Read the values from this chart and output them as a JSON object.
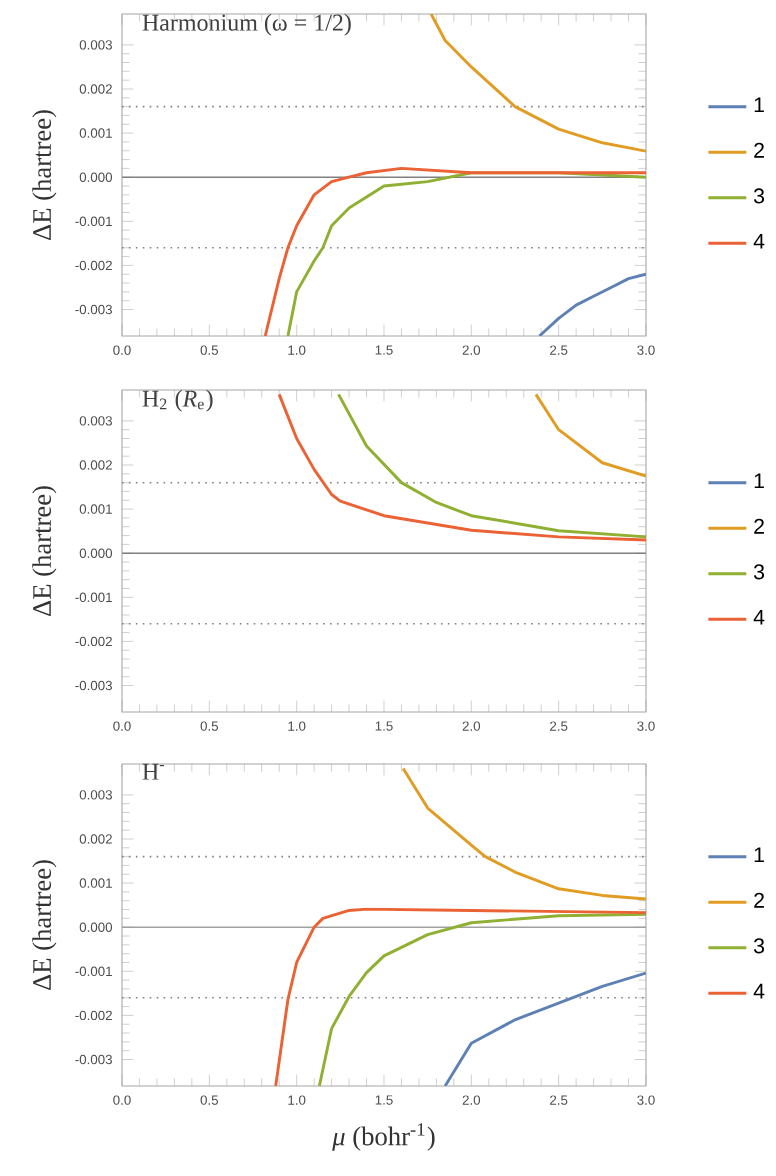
{
  "chart_data": [
    {
      "type": "line",
      "title": "Harmonium (ω = 1/2)",
      "ylabel": "ΔE (hartree)",
      "xlim": [
        0,
        3
      ],
      "ylim": [
        -0.0036,
        0.0037
      ],
      "xticks": [
        {
          "value": 0,
          "label": "0.0"
        },
        {
          "value": 0.5,
          "label": "0.5"
        },
        {
          "value": 1,
          "label": "1.0"
        },
        {
          "value": 1.5,
          "label": "1.5"
        },
        {
          "value": 2,
          "label": "2.0"
        },
        {
          "value": 2.5,
          "label": "2.5"
        },
        {
          "value": 3,
          "label": "3.0"
        }
      ],
      "yticks": [
        {
          "value": -0.003,
          "label": "-0.003"
        },
        {
          "value": -0.002,
          "label": "-0.002"
        },
        {
          "value": -0.001,
          "label": "-0.001"
        },
        {
          "value": 0,
          "label": "0.000"
        },
        {
          "value": 0.001,
          "label": "0.001"
        },
        {
          "value": 0.002,
          "label": "0.002"
        },
        {
          "value": 0.003,
          "label": "0.003"
        }
      ],
      "legend": "right",
      "ref_lines": [
        {
          "axis": "y",
          "value": 0,
          "color": "#808080"
        },
        {
          "axis": "y",
          "value": 0.0016,
          "color": "#808080",
          "line_style": "dotted"
        },
        {
          "axis": "y",
          "value": -0.0016,
          "color": "#808080",
          "line_style": "dotted"
        }
      ],
      "series": [
        {
          "name": "1",
          "color": "#5e81b5",
          "x": [
            2.39,
            2.5,
            2.6,
            2.7,
            2.8,
            2.9,
            3.0
          ],
          "values": [
            -0.0036,
            -0.0032,
            -0.0029,
            -0.0027,
            -0.0025,
            -0.0023,
            -0.0022
          ]
        },
        {
          "name": "2",
          "color": "#e19c24",
          "x": [
            1.77,
            1.85,
            1.9,
            2.0,
            2.25,
            2.5,
            2.75,
            3.0
          ],
          "values": [
            0.0037,
            0.0031,
            0.0029,
            0.0025,
            0.0016,
            0.00109,
            0.00078,
            0.00059
          ]
        },
        {
          "name": "3",
          "color": "#8fb032",
          "x": [
            0.95,
            1.0,
            1.1,
            1.15,
            1.2,
            1.3,
            1.5,
            1.75,
            2.0,
            2.5,
            3.0
          ],
          "values": [
            -0.0036,
            -0.0026,
            -0.0019,
            -0.0016,
            -0.0011,
            -0.0007,
            -0.0002,
            -0.0001,
            0.0001,
            0.0001,
            0.0
          ]
        },
        {
          "name": "4",
          "color": "#eb6235",
          "x": [
            0.82,
            0.9,
            0.95,
            1.0,
            1.1,
            1.2,
            1.3,
            1.4,
            1.6,
            2.0,
            2.5,
            3.0
          ],
          "values": [
            -0.0036,
            -0.0023,
            -0.0016,
            -0.0011,
            -0.0004,
            -0.0001,
            0.0,
            0.0001,
            0.0002,
            0.0001,
            0.0001,
            0.0001
          ]
        }
      ]
    },
    {
      "type": "line",
      "title": "H$_{2}$ (*R*$_{e}$)",
      "ylabel": "ΔE (hartree)",
      "xlim": [
        0,
        3
      ],
      "ylim": [
        -0.0036,
        0.0037
      ],
      "xticks": [
        {
          "value": 0,
          "label": "0.0"
        },
        {
          "value": 0.5,
          "label": "0.5"
        },
        {
          "value": 1,
          "label": "1.0"
        },
        {
          "value": 1.5,
          "label": "1.5"
        },
        {
          "value": 2,
          "label": "2.0"
        },
        {
          "value": 2.5,
          "label": "2.5"
        },
        {
          "value": 3,
          "label": "3.0"
        }
      ],
      "yticks": [
        {
          "value": -0.003,
          "label": "-0.003"
        },
        {
          "value": -0.002,
          "label": "-0.002"
        },
        {
          "value": -0.001,
          "label": "-0.001"
        },
        {
          "value": 0,
          "label": "0.000"
        },
        {
          "value": 0.001,
          "label": "0.001"
        },
        {
          "value": 0.002,
          "label": "0.002"
        },
        {
          "value": 0.003,
          "label": "0.003"
        }
      ],
      "legend": "right",
      "ref_lines": [
        {
          "axis": "y",
          "value": 0,
          "color": "#808080"
        },
        {
          "axis": "y",
          "value": 0.0016,
          "color": "#808080",
          "line_style": "dotted"
        },
        {
          "axis": "y",
          "value": -0.0016,
          "color": "#808080",
          "line_style": "dotted"
        }
      ],
      "series": [
        {
          "name": "1",
          "color": "#5e81b5"
        },
        {
          "name": "2",
          "color": "#e19c24",
          "x": [
            2.37,
            2.5,
            2.75,
            3.0
          ],
          "values": [
            0.0036,
            0.0028,
            0.00205,
            0.00175
          ]
        },
        {
          "name": "3",
          "color": "#8fb032",
          "x": [
            1.24,
            1.4,
            1.6,
            1.8,
            2.0,
            2.5,
            3.0
          ],
          "values": [
            0.0036,
            0.00243,
            0.0016,
            0.00115,
            0.00085,
            0.00051,
            0.00037
          ]
        },
        {
          "name": "4",
          "color": "#eb6235",
          "x": [
            0.9,
            1.0,
            1.1,
            1.2,
            1.25,
            1.5,
            2.0,
            2.5,
            3.0
          ],
          "values": [
            0.0036,
            0.0026,
            0.0019,
            0.00133,
            0.00118,
            0.00085,
            0.00052,
            0.00037,
            0.0003
          ]
        }
      ]
    },
    {
      "type": "line",
      "title": "H$^{-}$",
      "ylabel": "ΔE (hartree)",
      "xlabel": "*μ* (bohr$^{-1}$)",
      "xlim": [
        0,
        3
      ],
      "ylim": [
        -0.0036,
        0.0037
      ],
      "xticks": [
        {
          "value": 0,
          "label": "0.0"
        },
        {
          "value": 0.5,
          "label": "0.5"
        },
        {
          "value": 1,
          "label": "1.0"
        },
        {
          "value": 1.5,
          "label": "1.5"
        },
        {
          "value": 2,
          "label": "2.0"
        },
        {
          "value": 2.5,
          "label": "2.5"
        },
        {
          "value": 3,
          "label": "3.0"
        }
      ],
      "yticks": [
        {
          "value": -0.003,
          "label": "-0.003"
        },
        {
          "value": -0.002,
          "label": "-0.002"
        },
        {
          "value": -0.001,
          "label": "-0.001"
        },
        {
          "value": 0,
          "label": "0.000"
        },
        {
          "value": 0.001,
          "label": "0.001"
        },
        {
          "value": 0.002,
          "label": "0.002"
        },
        {
          "value": 0.003,
          "label": "0.003"
        }
      ],
      "legend": "right",
      "ref_lines": [
        {
          "axis": "y",
          "value": 0,
          "color": "#a0a0a0"
        },
        {
          "axis": "y",
          "value": 0.0016,
          "color": "#808080",
          "line_style": "dotted"
        },
        {
          "axis": "y",
          "value": -0.0016,
          "color": "#808080",
          "line_style": "dotted"
        }
      ],
      "series": [
        {
          "name": "1",
          "color": "#5e81b5",
          "x": [
            1.85,
            2.0,
            2.25,
            2.5,
            2.75,
            3.0
          ],
          "values": [
            -0.0036,
            -0.00263,
            -0.0021,
            -0.00172,
            -0.00134,
            -0.00104
          ]
        },
        {
          "name": "2",
          "color": "#e19c24",
          "x": [
            1.61,
            1.75,
            2.0,
            2.08,
            2.25,
            2.5,
            2.75,
            3.0
          ],
          "values": [
            0.0036,
            0.0027,
            0.00186,
            0.0016,
            0.00125,
            0.00087,
            0.00072,
            0.00064
          ]
        },
        {
          "name": "3",
          "color": "#8fb032",
          "x": [
            1.13,
            1.2,
            1.3,
            1.4,
            1.5,
            1.75,
            2.0,
            2.5,
            3.0
          ],
          "values": [
            -0.0036,
            -0.0023,
            -0.00157,
            -0.00103,
            -0.00065,
            -0.00017,
            0.0001,
            0.00026,
            0.00029
          ]
        },
        {
          "name": "4",
          "color": "#eb6235",
          "x": [
            0.88,
            0.95,
            1.0,
            1.1,
            1.15,
            1.3,
            1.4,
            2.0,
            3.0
          ],
          "values": [
            -0.0036,
            -0.00164,
            -0.0008,
            0.0,
            0.0002,
            0.00038,
            0.00041,
            0.00038,
            0.00033
          ]
        }
      ]
    }
  ]
}
